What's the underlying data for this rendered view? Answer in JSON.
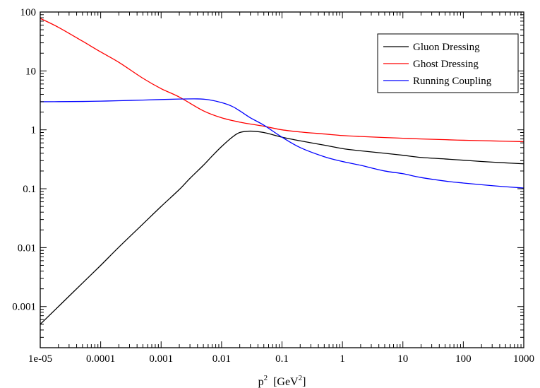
{
  "chart_data": {
    "type": "line",
    "title": "",
    "xlabel": "p",
    "xlabel_sup": "2",
    "xunit_pre": "[GeV",
    "xunit_sup": "2",
    "xunit_post": "]",
    "ylabel": "",
    "xscale": "log",
    "yscale": "log",
    "xlim": [
      1e-05,
      1000
    ],
    "ylim": [
      0.0002,
      100
    ],
    "x_ticks": [
      {
        "v": 1e-05,
        "label": "1e-05"
      },
      {
        "v": 0.0001,
        "label": "0.0001"
      },
      {
        "v": 0.001,
        "label": "0.001"
      },
      {
        "v": 0.01,
        "label": "0.01"
      },
      {
        "v": 0.1,
        "label": "0.1"
      },
      {
        "v": 1,
        "label": "1"
      },
      {
        "v": 10,
        "label": "10"
      },
      {
        "v": 100,
        "label": "100"
      },
      {
        "v": 1000,
        "label": "1000"
      }
    ],
    "y_ticks": [
      {
        "v": 0.001,
        "label": "0.001"
      },
      {
        "v": 0.01,
        "label": "0.01"
      },
      {
        "v": 0.1,
        "label": "0.1"
      },
      {
        "v": 1,
        "label": "1"
      },
      {
        "v": 10,
        "label": "10"
      },
      {
        "v": 100,
        "label": "100"
      }
    ],
    "grid": false,
    "legend_position": "top-right",
    "series": [
      {
        "name": "Gluon Dressing",
        "color": "#000000",
        "x": [
          1e-05,
          2e-05,
          5e-05,
          0.0001,
          0.0002,
          0.0005,
          0.001,
          0.002,
          0.003,
          0.005,
          0.007,
          0.01,
          0.015,
          0.02,
          0.03,
          0.05,
          0.1,
          0.2,
          0.5,
          1,
          2,
          5,
          10,
          20,
          50,
          100,
          200,
          500,
          1000
        ],
        "y": [
          0.0005,
          0.001,
          0.0025,
          0.005,
          0.0102,
          0.0252,
          0.05,
          0.097,
          0.15,
          0.25,
          0.36,
          0.52,
          0.75,
          0.9,
          0.95,
          0.9,
          0.75,
          0.65,
          0.55,
          0.48,
          0.44,
          0.4,
          0.37,
          0.34,
          0.32,
          0.305,
          0.29,
          0.275,
          0.265
        ]
      },
      {
        "name": "Ghost Dressing",
        "color": "#ff0000",
        "x": [
          1e-05,
          2e-05,
          5e-05,
          0.0001,
          0.0002,
          0.0005,
          0.001,
          0.002,
          0.005,
          0.01,
          0.02,
          0.05,
          0.1,
          0.2,
          0.5,
          1,
          2,
          5,
          10,
          20,
          50,
          100,
          200,
          500,
          1000
        ],
        "y": [
          78,
          55,
          32,
          21,
          14,
          7.5,
          5,
          3.6,
          2.1,
          1.6,
          1.35,
          1.15,
          1.0,
          0.92,
          0.85,
          0.8,
          0.77,
          0.74,
          0.72,
          0.7,
          0.68,
          0.665,
          0.655,
          0.64,
          0.63
        ]
      },
      {
        "name": "Running Coupling",
        "color": "#0000ff",
        "x": [
          1e-05,
          2e-05,
          5e-05,
          0.0001,
          0.0002,
          0.0005,
          0.001,
          0.002,
          0.004,
          0.006,
          0.01,
          0.015,
          0.02,
          0.03,
          0.05,
          0.1,
          0.2,
          0.5,
          1,
          2,
          5,
          10,
          20,
          50,
          100,
          200,
          500,
          1000
        ],
        "y": [
          3.0,
          3.01,
          3.03,
          3.07,
          3.12,
          3.2,
          3.27,
          3.33,
          3.35,
          3.25,
          2.9,
          2.5,
          2.1,
          1.6,
          1.2,
          0.75,
          0.5,
          0.35,
          0.29,
          0.25,
          0.2,
          0.18,
          0.155,
          0.135,
          0.125,
          0.117,
          0.108,
          0.103
        ]
      }
    ]
  }
}
